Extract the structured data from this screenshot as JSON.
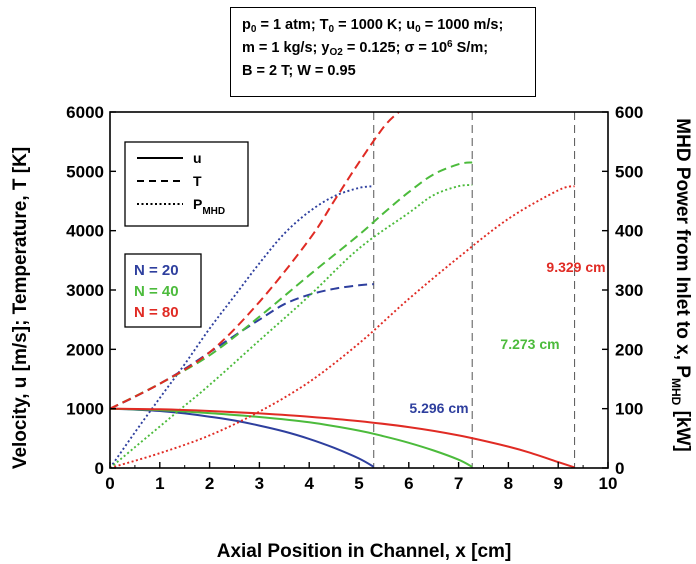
{
  "params": {
    "line1": "p₀ = 1 atm; T₀ = 1000 K; u₀ = 1000 m/s;",
    "line2": "m = 1 kg/s; y_O2 = 0.125; σ = 10⁶ S/m;",
    "line3": "B = 2 T; W = 0.95"
  },
  "chart_data": {
    "type": "line",
    "xlabel": "Axial Position in Channel, x [cm]",
    "ylabel": "Velocity, u [m/s]; Temperature, T [K]",
    "y2label": "MHD Power from Inlet to x, P_MHD [kW]",
    "xlim": [
      0,
      10
    ],
    "ylim": [
      0,
      6000
    ],
    "y2lim": [
      0,
      600
    ],
    "xticks": [
      0,
      1,
      2,
      3,
      4,
      5,
      6,
      7,
      8,
      9,
      10
    ],
    "yticks": [
      0,
      1000,
      2000,
      3000,
      4000,
      5000,
      6000
    ],
    "y2ticks": [
      0,
      100,
      200,
      300,
      400,
      500,
      600
    ],
    "grid": false,
    "legend_style": {
      "position": "top-left",
      "entries": [
        {
          "label": "u",
          "dash": "solid"
        },
        {
          "label": "T",
          "dash": "dashed"
        },
        {
          "label": "P_MHD",
          "dash": "dotted"
        }
      ]
    },
    "legend_cases": {
      "position": "left",
      "entries": [
        {
          "label": "N = 20",
          "color": "#2e3f9e"
        },
        {
          "label": "N = 40",
          "color": "#4cbb3c"
        },
        {
          "label": "N = 80",
          "color": "#e02b24"
        }
      ]
    },
    "channel_ends": [
      {
        "x": 5.296,
        "label": "5.296 cm",
        "color": "#2e3f9e"
      },
      {
        "x": 7.273,
        "label": "7.273 cm",
        "color": "#4cbb3c"
      },
      {
        "x": 9.329,
        "label": "9.329 cm",
        "color": "#e02b24"
      }
    ],
    "series": [
      {
        "case": "N = 20",
        "quantity": "u",
        "axis": "left",
        "dash": "solid",
        "color": "#2e3f9e",
        "x": [
          0,
          0.5,
          1,
          1.5,
          2,
          2.5,
          3,
          3.5,
          4,
          4.5,
          5,
          5.296
        ],
        "y": [
          1000,
          985,
          960,
          920,
          865,
          800,
          715,
          615,
          490,
          340,
          160,
          20
        ]
      },
      {
        "case": "N = 20",
        "quantity": "T",
        "axis": "left",
        "dash": "dashed",
        "color": "#2e3f9e",
        "x": [
          0,
          0.5,
          1,
          1.5,
          2,
          2.5,
          3,
          3.5,
          4,
          4.5,
          5,
          5.296
        ],
        "y": [
          1000,
          1200,
          1420,
          1670,
          1950,
          2230,
          2500,
          2760,
          2920,
          3020,
          3080,
          3100
        ]
      },
      {
        "case": "N = 20",
        "quantity": "P_MHD",
        "axis": "right",
        "dash": "dotted",
        "color": "#2e3f9e",
        "x": [
          0,
          0.5,
          1,
          1.5,
          2,
          2.5,
          3,
          3.5,
          4,
          4.5,
          5,
          5.296
        ],
        "y": [
          0,
          60,
          118,
          175,
          235,
          290,
          345,
          395,
          432,
          458,
          472,
          475
        ]
      },
      {
        "case": "N = 40",
        "quantity": "u",
        "axis": "left",
        "dash": "solid",
        "color": "#4cbb3c",
        "x": [
          0,
          1,
          2,
          3,
          4,
          5,
          5.5,
          6,
          6.5,
          7,
          7.273
        ],
        "y": [
          1000,
          975,
          925,
          860,
          770,
          630,
          535,
          425,
          295,
          140,
          20
        ]
      },
      {
        "case": "N = 40",
        "quantity": "T",
        "axis": "left",
        "dash": "dashed",
        "color": "#4cbb3c",
        "x": [
          0,
          1,
          2,
          3,
          4,
          5,
          5.5,
          6,
          6.5,
          7,
          7.273
        ],
        "y": [
          1000,
          1420,
          1900,
          2550,
          3250,
          3930,
          4300,
          4650,
          4950,
          5120,
          5150
        ]
      },
      {
        "case": "N = 40",
        "quantity": "P_MHD",
        "axis": "right",
        "dash": "dotted",
        "color": "#4cbb3c",
        "x": [
          0,
          0.5,
          1,
          1.5,
          2,
          3,
          4,
          5,
          6,
          6.5,
          7,
          7.273
        ],
        "y": [
          0,
          35,
          70,
          105,
          140,
          215,
          290,
          370,
          430,
          460,
          475,
          477
        ]
      },
      {
        "case": "N = 80",
        "quantity": "u",
        "axis": "left",
        "dash": "solid",
        "color": "#e02b24",
        "x": [
          0,
          1,
          2,
          3,
          4,
          5,
          6,
          7,
          8,
          8.5,
          9,
          9.329
        ],
        "y": [
          1000,
          990,
          960,
          920,
          865,
          790,
          690,
          550,
          360,
          240,
          100,
          10
        ]
      },
      {
        "case": "N = 80",
        "quantity": "T",
        "axis": "left",
        "dash": "dashed",
        "color": "#e02b24",
        "x": [
          0,
          1,
          2,
          3,
          4,
          4.5,
          5,
          5.5,
          5.8
        ],
        "y": [
          1000,
          1420,
          1950,
          2800,
          3850,
          4500,
          5150,
          5750,
          6000
        ]
      },
      {
        "case": "N = 80",
        "quantity": "P_MHD",
        "axis": "right",
        "dash": "dotted",
        "color": "#e02b24",
        "x": [
          0,
          1,
          2,
          3,
          4,
          5,
          6,
          7,
          8,
          9,
          9.329
        ],
        "y": [
          0,
          25,
          55,
          95,
          145,
          210,
          285,
          355,
          420,
          468,
          475
        ]
      }
    ]
  }
}
